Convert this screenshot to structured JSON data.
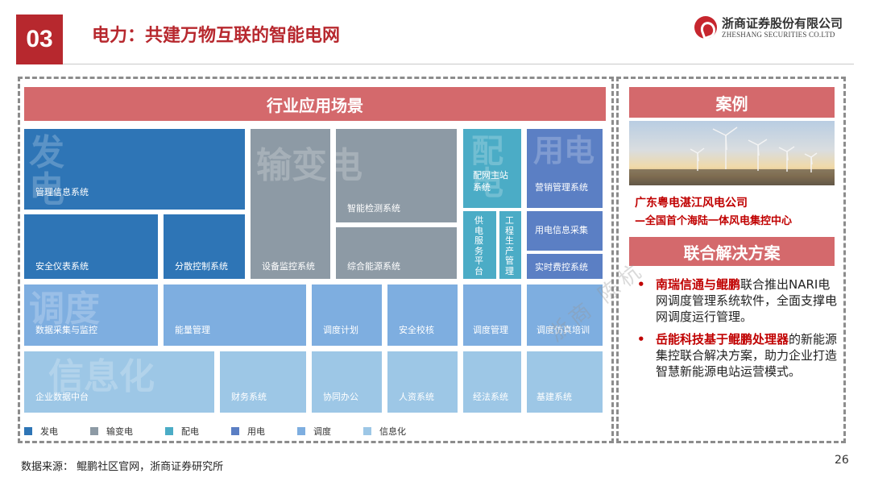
{
  "header": {
    "section_number": "03",
    "title": "电力：共建万物互联的智能电网",
    "logo_cn": "浙商证券股份有限公司",
    "logo_en": "ZHESHANG SECURITIES CO.LTD"
  },
  "application": {
    "band_title": "行业应用场景",
    "ghosts": {
      "fa": "发电",
      "shubian": "输变电",
      "pei": "配电",
      "yong": "用电",
      "tiaodu": "调度",
      "xinxi": "信息化"
    },
    "tiles": {
      "fa_mgmt": "管理信息系统",
      "fa_safety": "安全仪表系统",
      "fa_dcs": "分散控制系统",
      "shu_monitor": "设备监控系统",
      "shu_detect": "智能检测系统",
      "shu_energy": "综合能源系统",
      "pei_master": [
        "配网主站",
        "系统"
      ],
      "pei_service": "供电服务平台",
      "pei_project": "工程生产管理",
      "yong_market": "营销管理系统",
      "yong_collect": "用电信息采集",
      "yong_realtime": "实时费控系统",
      "tiao_scada": "数据采集与监控",
      "tiao_energy": "能量管理",
      "tiao_plan": "调度计划",
      "tiao_check": "安全校核",
      "tiao_mgmt": "调度管理",
      "tiao_sim": "调度仿真培训",
      "xin_platform": "企业数据中台",
      "xin_finance": "财务系统",
      "xin_office": "协同办公",
      "xin_hr": "人资系统",
      "xin_legal": "经法系统",
      "xin_infra": "基建系统"
    },
    "legend": [
      {
        "label": "发电",
        "color": "#2e75b6"
      },
      {
        "label": "输变电",
        "color": "#8d9aa5"
      },
      {
        "label": "配电",
        "color": "#4bacc6"
      },
      {
        "label": "用电",
        "color": "#5b7fc4"
      },
      {
        "label": "调度",
        "color": "#7eaee0"
      },
      {
        "label": "信息化",
        "color": "#9dc7e6"
      }
    ]
  },
  "case": {
    "band_title": "案例",
    "company": "广东粤电湛江风电公司",
    "description": "—全国首个海陆一体风电集控中心",
    "joint_title": "联合解决方案",
    "bullets": [
      {
        "highlight": "南瑞信通与鲲鹏",
        "text": "联合推出NARI电网调度管理系统软件，全面支撑电网调度运行管理。"
      },
      {
        "highlight": "岳能科技基于鲲鹏处理器",
        "text": "的新能源集控联合解决方案，助力企业打造智慧新能源电站运营模式。"
      }
    ]
  },
  "footer": {
    "source": "数据来源：  鲲鹏社区官网，浙商证券研究所",
    "page_number": "26"
  },
  "watermark": "浙商 陈杭"
}
